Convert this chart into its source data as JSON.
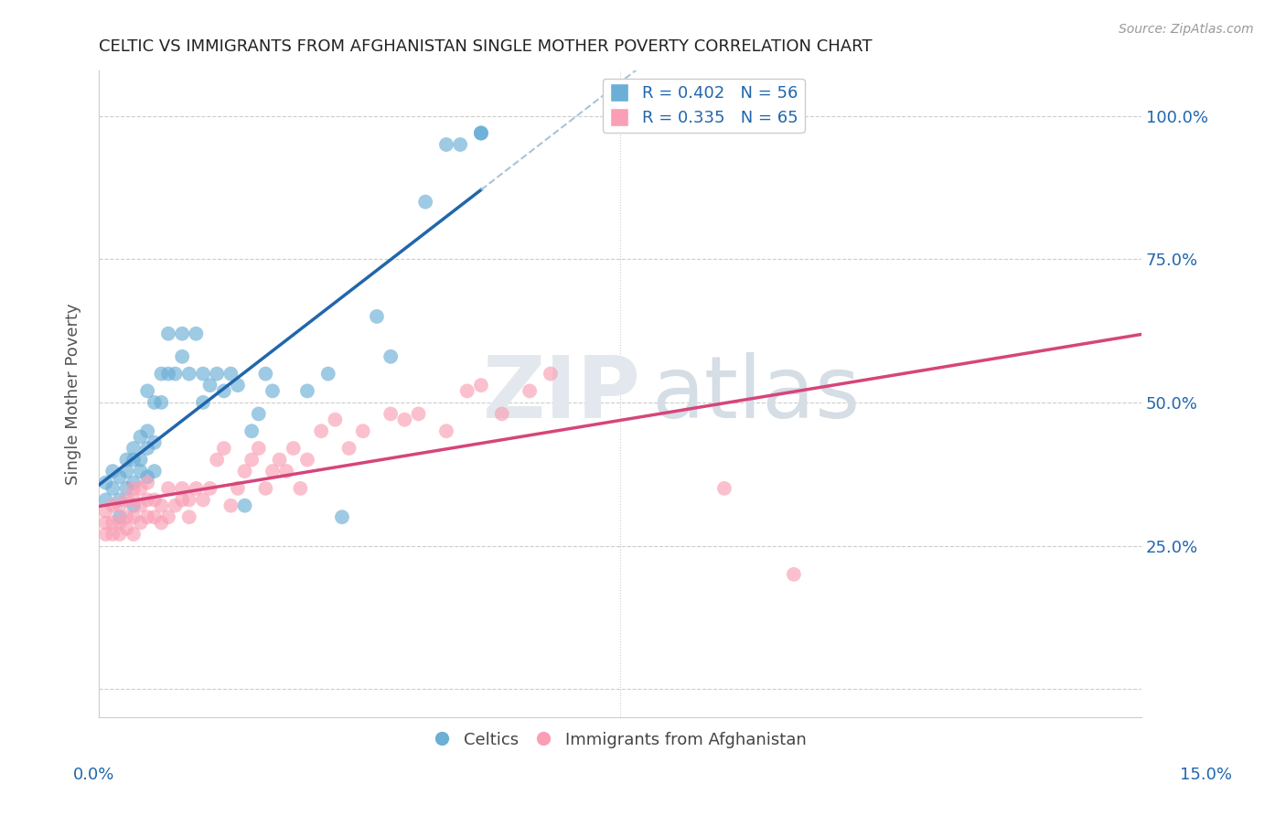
{
  "title": "CELTIC VS IMMIGRANTS FROM AFGHANISTAN SINGLE MOTHER POVERTY CORRELATION CHART",
  "source": "Source: ZipAtlas.com",
  "ylabel": "Single Mother Poverty",
  "xlim": [
    0.0,
    0.15
  ],
  "ylim": [
    -0.05,
    1.08
  ],
  "blue_color": "#6baed6",
  "pink_color": "#fa9fb5",
  "blue_line_color": "#2166ac",
  "pink_line_color": "#d6457a",
  "dashed_line_color": "#aac4d8",
  "legend_r1": "R = 0.402",
  "legend_n1": "N = 56",
  "legend_r2": "R = 0.335",
  "legend_n2": "N = 65",
  "celtics_x": [
    0.001,
    0.001,
    0.002,
    0.002,
    0.003,
    0.003,
    0.003,
    0.004,
    0.004,
    0.004,
    0.005,
    0.005,
    0.005,
    0.005,
    0.006,
    0.006,
    0.006,
    0.007,
    0.007,
    0.007,
    0.007,
    0.008,
    0.008,
    0.008,
    0.009,
    0.009,
    0.01,
    0.01,
    0.011,
    0.012,
    0.012,
    0.013,
    0.014,
    0.015,
    0.015,
    0.016,
    0.017,
    0.018,
    0.019,
    0.02,
    0.021,
    0.022,
    0.023,
    0.024,
    0.025,
    0.03,
    0.033,
    0.035,
    0.04,
    0.042,
    0.047,
    0.05,
    0.052,
    0.055,
    0.055,
    0.055
  ],
  "celtics_y": [
    0.33,
    0.36,
    0.35,
    0.38,
    0.3,
    0.33,
    0.37,
    0.35,
    0.38,
    0.4,
    0.32,
    0.36,
    0.4,
    0.42,
    0.38,
    0.4,
    0.44,
    0.37,
    0.42,
    0.45,
    0.52,
    0.38,
    0.43,
    0.5,
    0.5,
    0.55,
    0.55,
    0.62,
    0.55,
    0.58,
    0.62,
    0.55,
    0.62,
    0.5,
    0.55,
    0.53,
    0.55,
    0.52,
    0.55,
    0.53,
    0.32,
    0.45,
    0.48,
    0.55,
    0.52,
    0.52,
    0.55,
    0.3,
    0.65,
    0.58,
    0.85,
    0.95,
    0.95,
    0.97,
    0.97,
    0.97
  ],
  "afg_x": [
    0.001,
    0.001,
    0.001,
    0.002,
    0.002,
    0.002,
    0.003,
    0.003,
    0.003,
    0.004,
    0.004,
    0.004,
    0.005,
    0.005,
    0.005,
    0.005,
    0.006,
    0.006,
    0.006,
    0.007,
    0.007,
    0.007,
    0.008,
    0.008,
    0.009,
    0.009,
    0.01,
    0.01,
    0.011,
    0.012,
    0.012,
    0.013,
    0.013,
    0.014,
    0.015,
    0.016,
    0.017,
    0.018,
    0.019,
    0.02,
    0.021,
    0.022,
    0.023,
    0.024,
    0.025,
    0.026,
    0.027,
    0.028,
    0.029,
    0.03,
    0.032,
    0.034,
    0.036,
    0.038,
    0.042,
    0.044,
    0.046,
    0.05,
    0.053,
    0.055,
    0.058,
    0.062,
    0.065,
    0.09,
    0.1
  ],
  "afg_y": [
    0.27,
    0.29,
    0.31,
    0.27,
    0.29,
    0.32,
    0.27,
    0.29,
    0.32,
    0.28,
    0.3,
    0.33,
    0.27,
    0.3,
    0.33,
    0.35,
    0.29,
    0.32,
    0.35,
    0.3,
    0.33,
    0.36,
    0.3,
    0.33,
    0.29,
    0.32,
    0.3,
    0.35,
    0.32,
    0.33,
    0.35,
    0.3,
    0.33,
    0.35,
    0.33,
    0.35,
    0.4,
    0.42,
    0.32,
    0.35,
    0.38,
    0.4,
    0.42,
    0.35,
    0.38,
    0.4,
    0.38,
    0.42,
    0.35,
    0.4,
    0.45,
    0.47,
    0.42,
    0.45,
    0.48,
    0.47,
    0.48,
    0.45,
    0.52,
    0.53,
    0.48,
    0.52,
    0.55,
    0.35,
    0.2
  ]
}
